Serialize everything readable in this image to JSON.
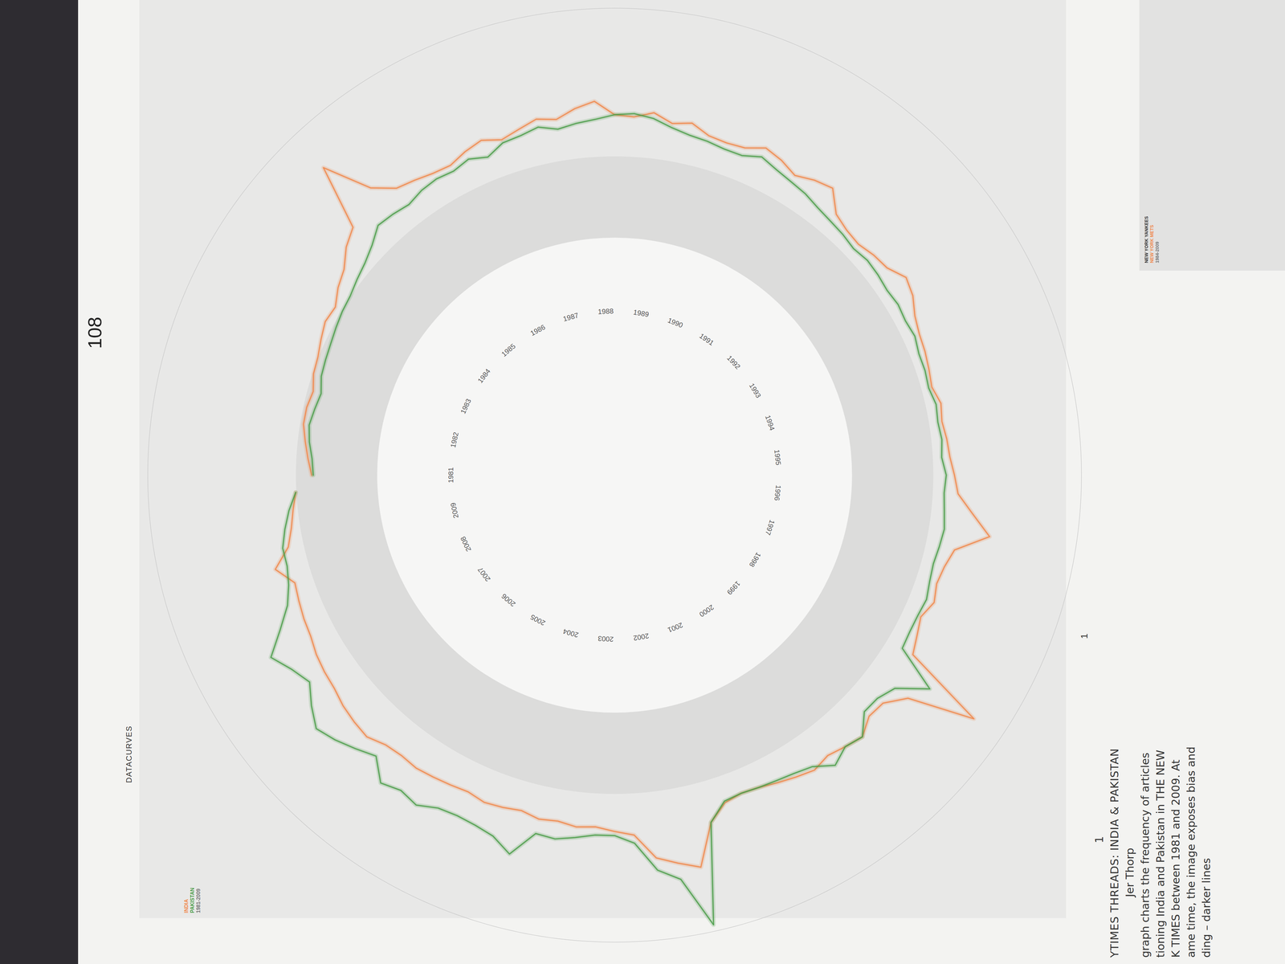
{
  "page": {
    "header": "DATACURVES",
    "page_number": "108",
    "figure_number": "1",
    "caption": {
      "number": "1",
      "author": "Jer Thorp",
      "lines": [
        "graph charts the frequency of articles",
        "tioning India and Pakistan in THE NEW",
        "K TIMES between 1981 and 2009. At",
        "ame time, the image exposes bias and",
        "ding – darker lines"
      ]
    },
    "thumbnail": {
      "lines": [
        "NEW YORK YANKEES",
        "NEW YORK METS",
        "1984-2009"
      ]
    }
  },
  "chart_data": {
    "type": "radial_line",
    "title": "YTIMES THREADS: INDIA & PAKISTAN",
    "subtitle": "1981-2009",
    "x": [
      1981,
      1981.25,
      1981.5,
      1981.75,
      1982,
      1982.25,
      1982.5,
      1982.75,
      1983,
      1983.25,
      1983.5,
      1983.75,
      1984,
      1984.25,
      1984.5,
      1984.75,
      1985,
      1985.25,
      1985.5,
      1985.75,
      1986,
      1986.25,
      1986.5,
      1986.75,
      1987,
      1987.25,
      1987.5,
      1987.75,
      1988,
      1988.25,
      1988.5,
      1988.75,
      1989,
      1989.25,
      1989.5,
      1989.75,
      1990,
      1990.25,
      1990.5,
      1990.75,
      1991,
      1991.25,
      1991.5,
      1991.75,
      1992,
      1992.25,
      1992.5,
      1992.75,
      1993,
      1993.25,
      1993.5,
      1993.75,
      1994,
      1994.25,
      1994.5,
      1994.75,
      1995,
      1995.25,
      1995.5,
      1995.75,
      1996,
      1996.25,
      1996.5,
      1996.75,
      1997,
      1997.25,
      1997.5,
      1997.75,
      1998,
      1998.25,
      1998.5,
      1998.75,
      1999,
      1999.25,
      1999.5,
      1999.75,
      2000,
      2000.25,
      2000.5,
      2000.75,
      2001,
      2001.25,
      2001.5,
      2001.75,
      2002,
      2002.25,
      2002.5,
      2002.75,
      2003,
      2003.25,
      2003.5,
      2003.75,
      2004,
      2004.25,
      2004.5,
      2004.75,
      2005,
      2005.25,
      2005.5,
      2005.75,
      2006,
      2006.25,
      2006.5,
      2006.75,
      2007,
      2007.25,
      2007.5,
      2007.75,
      2008,
      2008.25,
      2008.5,
      2008.75,
      2009,
      2009.25,
      2009.5,
      2009.75
    ],
    "series": [
      {
        "name": "INDIA",
        "color": "#f0874a",
        "values": [
          80,
          85,
          90,
          95,
          95,
          92,
          98,
          100,
          105,
          110,
          108,
          118,
          125,
          140,
          150,
          227,
          170,
          150,
          145,
          140,
          138,
          145,
          150,
          142,
          148,
          155,
          150,
          160,
          167,
          150,
          148,
          155,
          145,
          150,
          140,
          138,
          140,
          150,
          145,
          137,
          145,
          150,
          128,
          122,
          120,
          125,
          128,
          140,
          135,
          125,
          120,
          118,
          115,
          112,
          118,
          115,
          118,
          120,
          125,
          130,
          150,
          174,
          135,
          128,
          125,
          130,
          122,
          128,
          135,
          240,
          160,
          140,
          138,
          150,
          145,
          140,
          145,
          140,
          135,
          130,
          128,
          132,
          150,
          200,
          190,
          180,
          150,
          145,
          140,
          142,
          138,
          140,
          135,
          138,
          140,
          136,
          138,
          140,
          142,
          140,
          142,
          150,
          148,
          145,
          140,
          138,
          135,
          130,
          128,
          125,
          122,
          140,
          118,
          110,
          105,
          100
        ]
      },
      {
        "name": "PAKISTAN",
        "color": "#4a9c48",
        "values": [
          78,
          80,
          85,
          88,
          85,
          82,
          88,
          90,
          92,
          95,
          98,
          100,
          105,
          110,
          118,
          130,
          128,
          125,
          130,
          132,
          130,
          135,
          128,
          138,
          140,
          145,
          138,
          142,
          145,
          150,
          152,
          148,
          140,
          135,
          133,
          130,
          130,
          138,
          132,
          128,
          125,
          120,
          117,
          115,
          112,
          115,
          114,
          112,
          114,
          112,
          114,
          110,
          110,
          108,
          112,
          110,
          112,
          110,
          115,
          113,
          115,
          118,
          116,
          114,
          116,
          120,
          118,
          118,
          120,
          175,
          140,
          131,
          130,
          150,
          145,
          155,
          140,
          135,
          132,
          130,
          128,
          130,
          150,
          272,
          210,
          195,
          160,
          150,
          150,
          155,
          160,
          158,
          190,
          175,
          170,
          168,
          170,
          180,
          175,
          182,
          160,
          170,
          180,
          188,
          175,
          160,
          170,
          185,
          160,
          140,
          130,
          125,
          125,
          118,
          110,
          100
        ]
      }
    ],
    "xlim": [
      1981,
      2010
    ],
    "xticks": [
      1981,
      1982,
      1983,
      1984,
      1985,
      1986,
      1987,
      1988,
      1989,
      1990,
      1991,
      1992,
      1993,
      1994,
      1995,
      1996,
      1997,
      1998,
      1999,
      2000,
      2001,
      2002,
      2003,
      2004,
      2005,
      2006,
      2007,
      2008,
      2009
    ],
    "ylim": [
      0,
      280
    ],
    "tick_labels": "x",
    "legend": "top-left"
  }
}
